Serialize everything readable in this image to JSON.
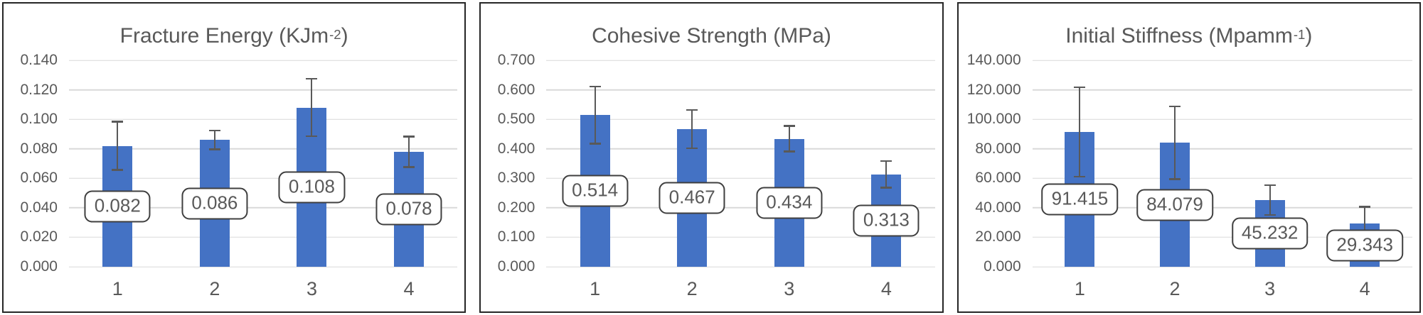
{
  "page": {
    "background": "#ffffff",
    "description": "Three Excel-style bar charts with error bars and boxed data callouts"
  },
  "colors": {
    "bar": "#4472C4",
    "error_bar": "#595959",
    "gridline": "#D9D9D9",
    "text": "#595959",
    "label_box_border": "#3F3F3F",
    "panel_border": "#262626"
  },
  "chart_data": [
    {
      "type": "bar",
      "title": "Fracture Energy (KJm-2)",
      "title_prefix": "Fracture Energy (KJm",
      "title_sup": "-2",
      "title_suffix": ")",
      "categories": [
        "1",
        "2",
        "3",
        "4"
      ],
      "values": [
        0.082,
        0.086,
        0.108,
        0.078
      ],
      "data_labels": [
        "0.082",
        "0.086",
        "0.108",
        "0.078"
      ],
      "errors": [
        0.017,
        0.007,
        0.02,
        0.011
      ],
      "ylim": [
        0,
        0.14
      ],
      "ystep": 0.02,
      "tick_decimals": 3,
      "tick_labels": [
        "0.000",
        "0.020",
        "0.040",
        "0.060",
        "0.080",
        "0.100",
        "0.120",
        "0.140"
      ],
      "grid": true,
      "legend": false
    },
    {
      "type": "bar",
      "title": "Cohesive Strength (MPa)",
      "title_prefix": "Cohesive Strength (MPa",
      "title_sup": "",
      "title_suffix": ")",
      "categories": [
        "1",
        "2",
        "3",
        "4"
      ],
      "values": [
        0.514,
        0.467,
        0.434,
        0.313
      ],
      "data_labels": [
        "0.514",
        "0.467",
        "0.434",
        "0.313"
      ],
      "errors": [
        0.1,
        0.068,
        0.046,
        0.048
      ],
      "ylim": [
        0,
        0.7
      ],
      "ystep": 0.1,
      "tick_decimals": 3,
      "tick_labels": [
        "0.000",
        "0.100",
        "0.200",
        "0.300",
        "0.400",
        "0.500",
        "0.600",
        "0.700"
      ],
      "grid": true,
      "legend": false
    },
    {
      "type": "bar",
      "title": "Initial Stiffness (Mpamm-1)",
      "title_prefix": "Initial Stiffness (Mpamm",
      "title_sup": "-1",
      "title_suffix": ")",
      "categories": [
        "1",
        "2",
        "3",
        "4"
      ],
      "values": [
        91.415,
        84.079,
        45.232,
        29.343
      ],
      "data_labels": [
        "91.415",
        "84.079",
        "45.232",
        "29.343"
      ],
      "errors": [
        31.0,
        25.3,
        10.7,
        12.0
      ],
      "ylim": [
        0,
        140
      ],
      "ystep": 20,
      "tick_decimals": 3,
      "tick_labels": [
        "0.000",
        "20.000",
        "40.000",
        "60.000",
        "80.000",
        "100.000",
        "120.000",
        "140.000"
      ],
      "grid": true,
      "legend": false
    }
  ]
}
